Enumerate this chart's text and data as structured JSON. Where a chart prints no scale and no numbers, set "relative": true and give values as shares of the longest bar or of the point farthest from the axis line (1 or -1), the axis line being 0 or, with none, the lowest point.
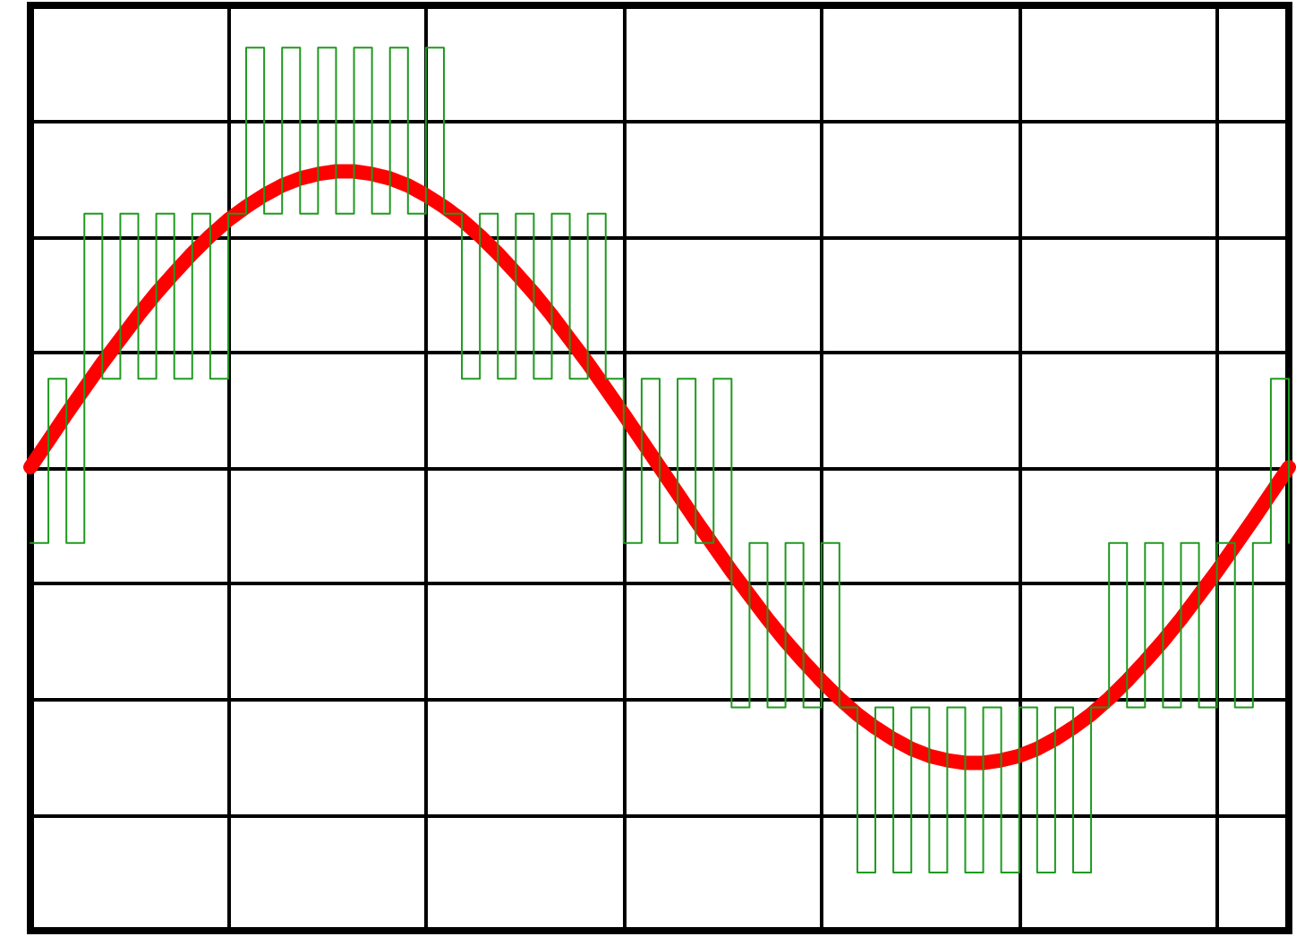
{
  "chart_data": {
    "type": "line",
    "relative": true,
    "grid": true,
    "marker": "none",
    "line_style": "solid",
    "categories": [
      null,
      null,
      null,
      null,
      null,
      null,
      null,
      null,
      null,
      null,
      null,
      null,
      null,
      null,
      null,
      null,
      null,
      null,
      null,
      null,
      null,
      null,
      null,
      null,
      null,
      null,
      null,
      null,
      null,
      null,
      null,
      null,
      null,
      null,
      null,
      null,
      null,
      null,
      null,
      null,
      null,
      null,
      null,
      null,
      null,
      null,
      null,
      null,
      null,
      null,
      null,
      null,
      null,
      null,
      null,
      null,
      null,
      null,
      null,
      null,
      null,
      null,
      null,
      null,
      null,
      null,
      null,
      null,
      null,
      null,
      null
    ],
    "series": [
      {
        "color": "#ff0000",
        "values": [
          0.525,
          0.555,
          0.585,
          0.614,
          0.643,
          0.67,
          0.697,
          0.722,
          0.745,
          0.767,
          0.787,
          0.805,
          0.82,
          0.833,
          0.844,
          0.852,
          0.857,
          0.86,
          0.86,
          0.857,
          0.852,
          0.844,
          0.833,
          0.82,
          0.805,
          0.787,
          0.767,
          0.745,
          0.722,
          0.697,
          0.67,
          0.643,
          0.614,
          0.585,
          0.555,
          0.525,
          0.495,
          0.465,
          0.436,
          0.407,
          0.38,
          0.353,
          0.328,
          0.305,
          0.283,
          0.263,
          0.245,
          0.23,
          0.217,
          0.206,
          0.198,
          0.193,
          0.19,
          0.19,
          0.193,
          0.198,
          0.206,
          0.217,
          0.23,
          0.245,
          0.263,
          0.283,
          0.305,
          0.328,
          0.353,
          0.38,
          0.407,
          0.436,
          0.465,
          0.495,
          0.525
        ]
      },
      {
        "type": "step",
        "color": "#1f9a1f",
        "values": [
          0.439,
          0.625,
          0.439,
          0.812,
          0.625,
          0.812,
          0.625,
          0.812,
          0.625,
          0.812,
          0.625,
          0.812,
          1.0,
          0.812,
          1.0,
          0.812,
          1.0,
          0.812,
          1.0,
          0.812,
          1.0,
          0.812,
          1.0,
          0.812,
          0.625,
          0.812,
          0.625,
          0.812,
          0.625,
          0.812,
          0.625,
          0.812,
          0.625,
          0.439,
          0.625,
          0.439,
          0.625,
          0.439,
          0.625,
          0.253,
          0.439,
          0.253,
          0.439,
          0.253,
          0.439,
          0.253,
          0.066,
          0.253,
          0.066,
          0.253,
          0.066,
          0.253,
          0.066,
          0.253,
          0.066,
          0.253,
          0.066,
          0.253,
          0.066,
          0.253,
          0.439,
          0.253,
          0.439,
          0.253,
          0.439,
          0.253,
          0.439,
          0.253,
          0.439,
          0.625,
          0.439
        ]
      }
    ]
  }
}
